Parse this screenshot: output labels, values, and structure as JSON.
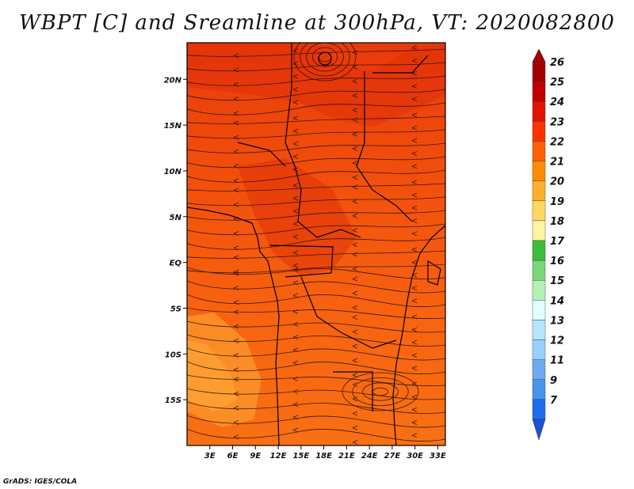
{
  "title": "WBPT [C] and Sreamline at 300hPa, VT: 2020082800",
  "credit": "GrADS: IGES/COLA",
  "map": {
    "lat_range": [
      -20,
      24
    ],
    "lon_range": [
      0,
      34
    ],
    "lat_ticks": [
      {
        "value": 20,
        "label": "20N"
      },
      {
        "value": 15,
        "label": "15N"
      },
      {
        "value": 10,
        "label": "10N"
      },
      {
        "value": 5,
        "label": "5N"
      },
      {
        "value": 0,
        "label": "EQ"
      },
      {
        "value": -5,
        "label": "5S"
      },
      {
        "value": -10,
        "label": "10S"
      },
      {
        "value": -15,
        "label": "15S"
      }
    ],
    "lon_ticks": [
      {
        "value": 3,
        "label": "3E"
      },
      {
        "value": 6,
        "label": "6E"
      },
      {
        "value": 9,
        "label": "9E"
      },
      {
        "value": 12,
        "label": "12E"
      },
      {
        "value": 15,
        "label": "15E"
      },
      {
        "value": 18,
        "label": "18E"
      },
      {
        "value": 21,
        "label": "21E"
      },
      {
        "value": 24,
        "label": "24E"
      },
      {
        "value": 27,
        "label": "27E"
      },
      {
        "value": 30,
        "label": "30E"
      },
      {
        "value": 33,
        "label": "33E"
      }
    ]
  },
  "colorbar": {
    "levels": [
      {
        "label": "26",
        "color": "#a50000"
      },
      {
        "label": "25",
        "color": "#c00000"
      },
      {
        "label": "24",
        "color": "#e11400"
      },
      {
        "label": "23",
        "color": "#ff3200"
      },
      {
        "label": "22",
        "color": "#ff6000"
      },
      {
        "label": "21",
        "color": "#ff8c00"
      },
      {
        "label": "20",
        "color": "#ffaf29"
      },
      {
        "label": "19",
        "color": "#ffd860"
      },
      {
        "label": "18",
        "color": "#fff4a0"
      },
      {
        "label": "17",
        "color": "#3cbc3c"
      },
      {
        "label": "16",
        "color": "#78d878"
      },
      {
        "label": "15",
        "color": "#b4f0b4"
      },
      {
        "label": "14",
        "color": "#e1ffff"
      },
      {
        "label": "13",
        "color": "#b4e6ff"
      },
      {
        "label": "12",
        "color": "#96d2fa"
      },
      {
        "label": "11",
        "color": "#6eaaf0"
      },
      {
        "label": "9",
        "color": "#4696f0"
      },
      {
        "label": "7",
        "color": "#1e6eeb"
      }
    ],
    "bottom_color": "#1e50d8"
  }
}
